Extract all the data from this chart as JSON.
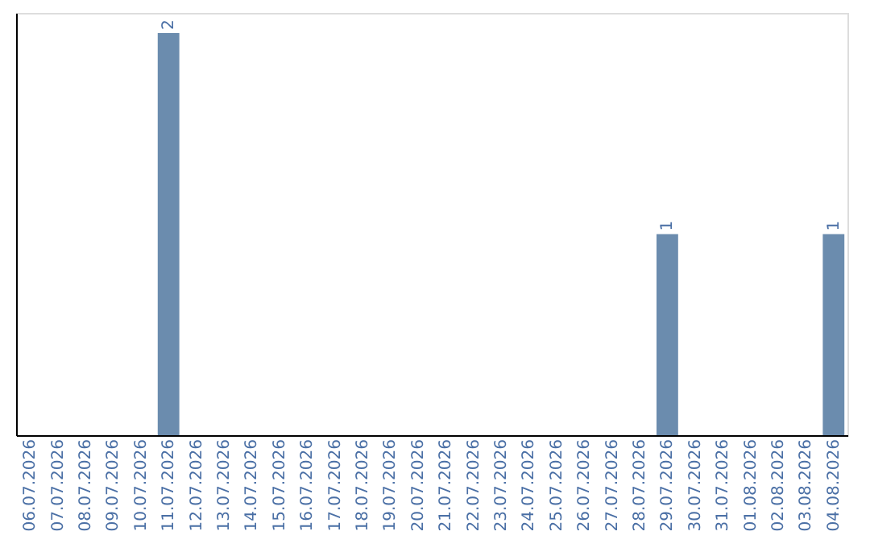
{
  "chart_data": {
    "type": "bar",
    "categories": [
      "06.07.2026",
      "07.07.2026",
      "08.07.2026",
      "09.07.2026",
      "10.07.2026",
      "11.07.2026",
      "12.07.2026",
      "13.07.2026",
      "14.07.2026",
      "15.07.2026",
      "16.07.2026",
      "17.07.2026",
      "18.07.2026",
      "19.07.2026",
      "20.07.2026",
      "21.07.2026",
      "22.07.2026",
      "23.07.2026",
      "24.07.2026",
      "25.07.2026",
      "26.07.2026",
      "27.07.2026",
      "28.07.2026",
      "29.07.2026",
      "30.07.2026",
      "31.07.2026",
      "01.08.2026",
      "02.08.2026",
      "03.08.2026",
      "04.08.2026"
    ],
    "values": [
      0,
      0,
      0,
      0,
      0,
      2,
      0,
      0,
      0,
      0,
      0,
      0,
      0,
      0,
      0,
      0,
      0,
      0,
      0,
      0,
      0,
      0,
      0,
      1,
      0,
      0,
      0,
      0,
      0,
      1
    ],
    "value_labels": [
      null,
      null,
      null,
      null,
      null,
      "2",
      null,
      null,
      null,
      null,
      null,
      null,
      null,
      null,
      null,
      null,
      null,
      null,
      null,
      null,
      null,
      null,
      null,
      "1",
      null,
      null,
      null,
      null,
      null,
      "1"
    ],
    "color": "#6b8cae",
    "ylim": [
      0,
      2.1
    ],
    "tick_labels": "x",
    "grid": false
  }
}
